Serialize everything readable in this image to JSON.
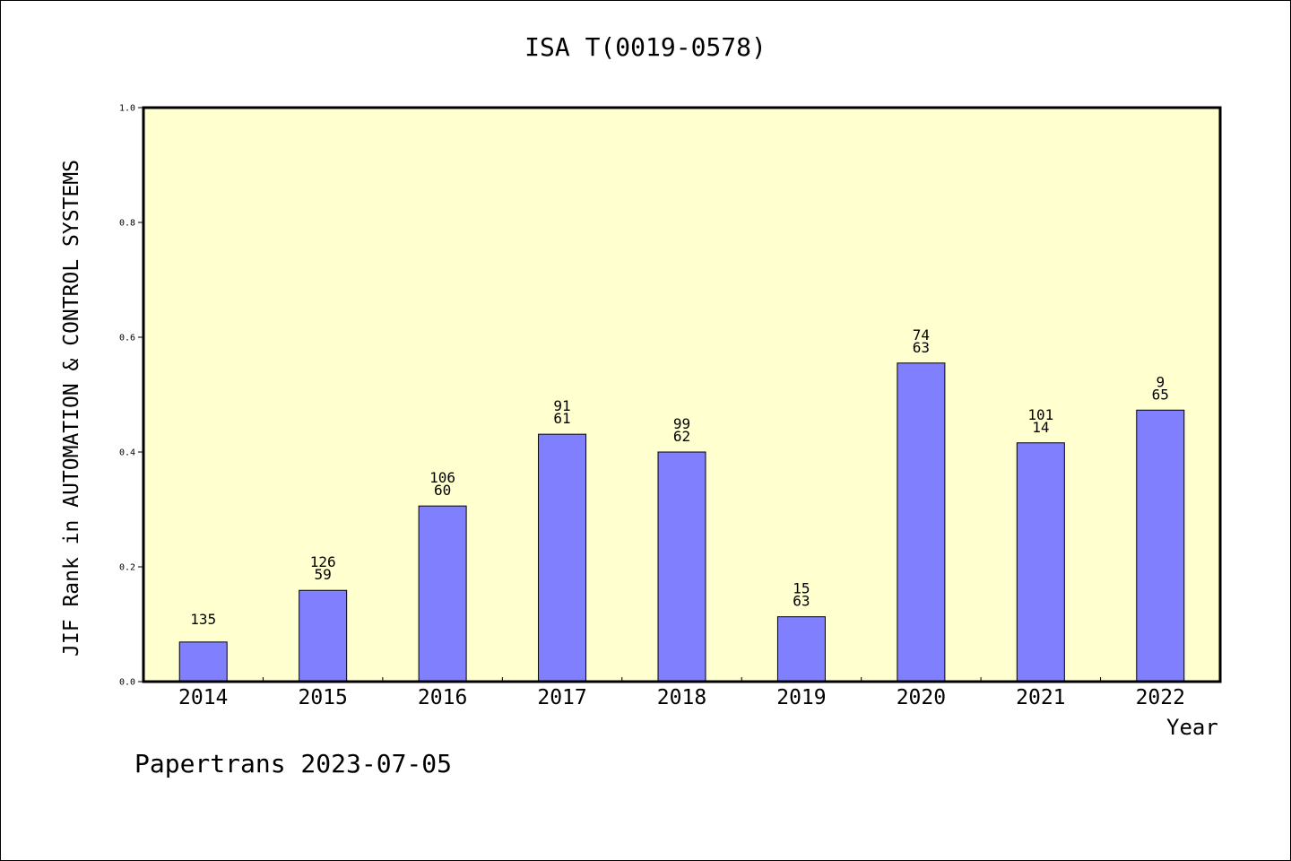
{
  "chart_data": {
    "type": "bar",
    "title": "ISA T(0019-0578)",
    "xlabel": "Year",
    "ylabel": "JIF Rank in AUTOMATION & CONTROL SYSTEMS",
    "ylim": [
      0,
      1.0
    ],
    "yticks": [
      "0.0",
      "0.2",
      "0.4",
      "0.6",
      "0.8",
      "1.0"
    ],
    "categories": [
      "2014",
      "2015",
      "2016",
      "2017",
      "2018",
      "2019",
      "2020",
      "2021",
      "2022"
    ],
    "values": [
      0.069,
      0.159,
      0.306,
      0.431,
      0.4,
      0.113,
      0.555,
      0.416,
      0.473
    ],
    "labels": [
      [
        "135",
        ""
      ],
      [
        "126",
        "59"
      ],
      [
        "106",
        "60"
      ],
      [
        "91",
        "61"
      ],
      [
        "99",
        "62"
      ],
      [
        "15",
        "63"
      ],
      [
        "74",
        "63"
      ],
      [
        "101",
        "14"
      ],
      [
        "9",
        "65"
      ]
    ],
    "grid": false,
    "colors": {
      "bar": "#8080ff",
      "plot_bg": "#ffffd0"
    }
  },
  "footer": "Papertrans 2023-07-05"
}
